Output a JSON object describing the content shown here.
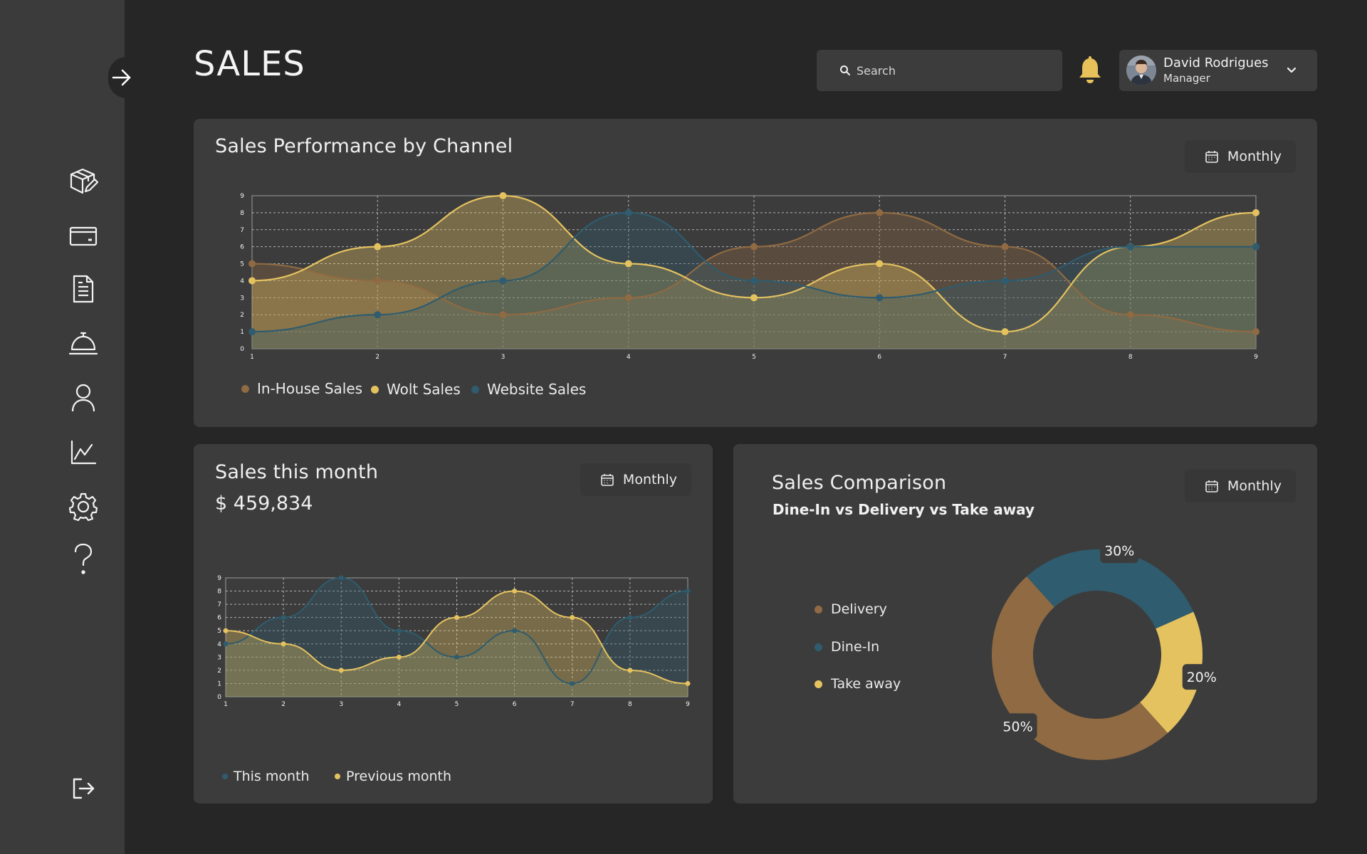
{
  "page": {
    "title": "SALES"
  },
  "search": {
    "placeholder": "Search"
  },
  "user": {
    "name": "David Rodrigues",
    "role": "Manager"
  },
  "colors": {
    "inhouse": "#8f6a42",
    "wolt": "#e5c260",
    "website": "#2f5c6e",
    "background": "#262626",
    "card": "#3c3c3c",
    "sidebar": "#3b3b3b"
  },
  "sidebar": {
    "items": [
      {
        "icon": "box-edit-icon"
      },
      {
        "icon": "wallet-icon"
      },
      {
        "icon": "document-icon"
      },
      {
        "icon": "cloche-icon"
      },
      {
        "icon": "user-icon"
      },
      {
        "icon": "chart-line-icon"
      },
      {
        "icon": "gear-icon"
      },
      {
        "icon": "help-icon"
      },
      {
        "icon": "logout-icon"
      }
    ]
  },
  "performance": {
    "title": "Sales Performance by Channel",
    "period": "Monthly",
    "legend": [
      "In-House Sales",
      "Wolt Sales",
      "Website Sales"
    ]
  },
  "month": {
    "title": "Sales this month",
    "amount": "$ 459,834",
    "period": "Monthly",
    "legend": [
      "This month",
      "Previous month"
    ]
  },
  "comparison": {
    "title": "Sales Comparison",
    "subtitle": "Dine-In vs Delivery vs Take away",
    "period": "Monthly",
    "legend": [
      "Delivery",
      "Dine-In",
      "Take away"
    ]
  },
  "chart_data": [
    {
      "type": "area",
      "x": [
        1,
        2,
        3,
        4,
        5,
        6,
        7,
        8,
        9
      ],
      "ylim": [
        0,
        9
      ],
      "yticks": [
        0,
        1,
        2,
        3,
        4,
        5,
        6,
        7,
        8,
        9
      ],
      "grid": true,
      "legend_position": "bottom-left",
      "series": [
        {
          "name": "In-House Sales",
          "color": "#8f6a42",
          "values": [
            5,
            4,
            2,
            3,
            6,
            8,
            6,
            2,
            1
          ]
        },
        {
          "name": "Wolt Sales",
          "color": "#e5c260",
          "values": [
            4,
            6,
            9,
            5,
            3,
            5,
            1,
            6,
            8
          ]
        },
        {
          "name": "Website Sales",
          "color": "#2f5c6e",
          "values": [
            1,
            2,
            4,
            8,
            4,
            3,
            4,
            6,
            6
          ]
        }
      ]
    },
    {
      "type": "area",
      "x": [
        1,
        2,
        3,
        4,
        5,
        6,
        7,
        8,
        9
      ],
      "ylim": [
        0,
        9
      ],
      "yticks": [
        0,
        1,
        2,
        3,
        4,
        5,
        6,
        7,
        8,
        9
      ],
      "grid": true,
      "legend_position": "bottom-left",
      "series": [
        {
          "name": "This month",
          "color": "#2f5c6e",
          "values": [
            4,
            6,
            9,
            5,
            3,
            5,
            1,
            6,
            8
          ]
        },
        {
          "name": "Previous month",
          "color": "#e5c260",
          "values": [
            5,
            4,
            2,
            3,
            6,
            8,
            6,
            2,
            1
          ]
        }
      ]
    },
    {
      "type": "pie",
      "donut": true,
      "legend_position": "left",
      "slices": [
        {
          "label": "Dine-In",
          "value": 30,
          "display": "30%",
          "color": "#2f5c6e"
        },
        {
          "label": "Take away",
          "value": 20,
          "display": "20%",
          "color": "#e5c260"
        },
        {
          "label": "Delivery",
          "value": 50,
          "display": "50%",
          "color": "#8f6a42"
        }
      ]
    }
  ]
}
